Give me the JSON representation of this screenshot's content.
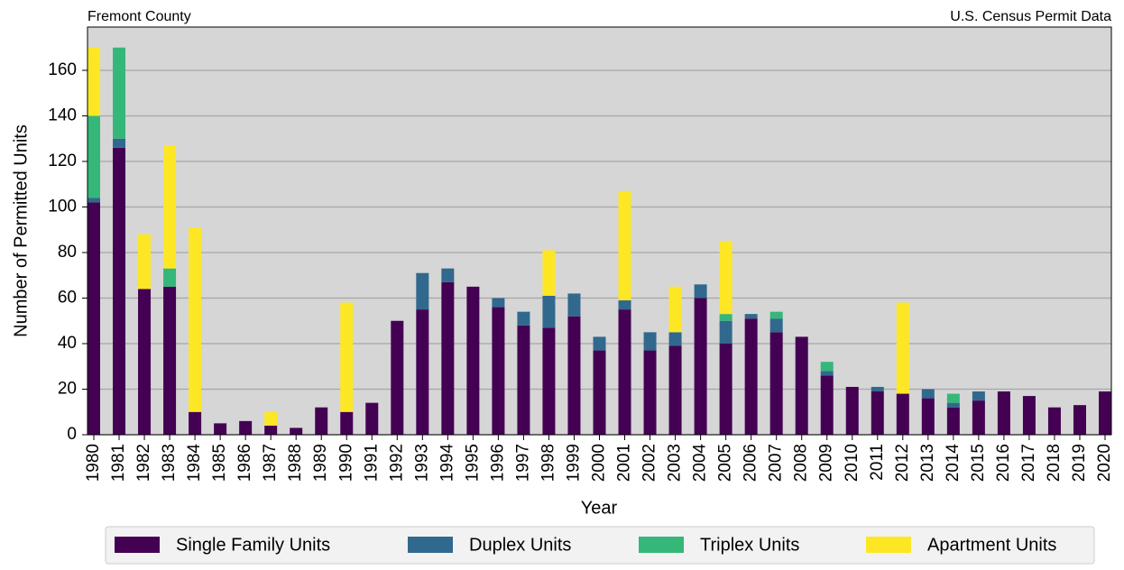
{
  "chart_data": {
    "type": "bar",
    "stacked": true,
    "title_left": "Fremont County",
    "title_right": "U.S. Census Permit Data",
    "x_label": "Year",
    "y_label": "Number of Permitted Units",
    "categories": [
      "1980",
      "1981",
      "1982",
      "1983",
      "1984",
      "1985",
      "1986",
      "1987",
      "1988",
      "1989",
      "1990",
      "1991",
      "1992",
      "1993",
      "1994",
      "1995",
      "1996",
      "1997",
      "1998",
      "1999",
      "2000",
      "2001",
      "2002",
      "2003",
      "2004",
      "2005",
      "2006",
      "2007",
      "2008",
      "2009",
      "2010",
      "2011",
      "2012",
      "2013",
      "2014",
      "2015",
      "2016",
      "2017",
      "2018",
      "2019",
      "2020"
    ],
    "series": [
      {
        "name": "Single Family Units",
        "color": "#440154",
        "values": [
          102,
          126,
          64,
          65,
          10,
          5,
          6,
          4,
          3,
          12,
          10,
          14,
          50,
          55,
          67,
          65,
          56,
          48,
          47,
          52,
          37,
          55,
          37,
          39,
          60,
          40,
          51,
          45,
          43,
          26,
          21,
          19,
          18,
          16,
          12,
          15,
          19,
          17,
          12,
          13,
          19
        ]
      },
      {
        "name": "Duplex Units",
        "color": "#31688e",
        "values": [
          2,
          4,
          0,
          0,
          0,
          0,
          0,
          0,
          0,
          0,
          0,
          0,
          0,
          16,
          6,
          0,
          4,
          6,
          14,
          10,
          6,
          4,
          8,
          6,
          6,
          10,
          2,
          6,
          0,
          2,
          0,
          2,
          0,
          4,
          2,
          4,
          0,
          0,
          0,
          0,
          0
        ]
      },
      {
        "name": "Triplex Units",
        "color": "#35b779",
        "values": [
          36,
          40,
          0,
          8,
          0,
          0,
          0,
          0,
          0,
          0,
          0,
          0,
          0,
          0,
          0,
          0,
          0,
          0,
          0,
          0,
          0,
          0,
          0,
          0,
          0,
          3,
          0,
          3,
          0,
          4,
          0,
          0,
          0,
          0,
          4,
          0,
          0,
          0,
          0,
          0,
          0
        ]
      },
      {
        "name": "Apartment Units",
        "color": "#fde725",
        "values": [
          30,
          0,
          24,
          54,
          81,
          0,
          0,
          6,
          0,
          0,
          48,
          0,
          0,
          0,
          0,
          0,
          0,
          0,
          20,
          0,
          0,
          48,
          0,
          20,
          0,
          32,
          0,
          0,
          0,
          0,
          0,
          0,
          40,
          0,
          0,
          0,
          0,
          0,
          0,
          0,
          0
        ]
      }
    ],
    "ylim": [
      0,
      179
    ],
    "yticks": [
      0,
      20,
      40,
      60,
      80,
      100,
      120,
      140,
      160
    ],
    "grid": true,
    "legend": "bottom"
  }
}
